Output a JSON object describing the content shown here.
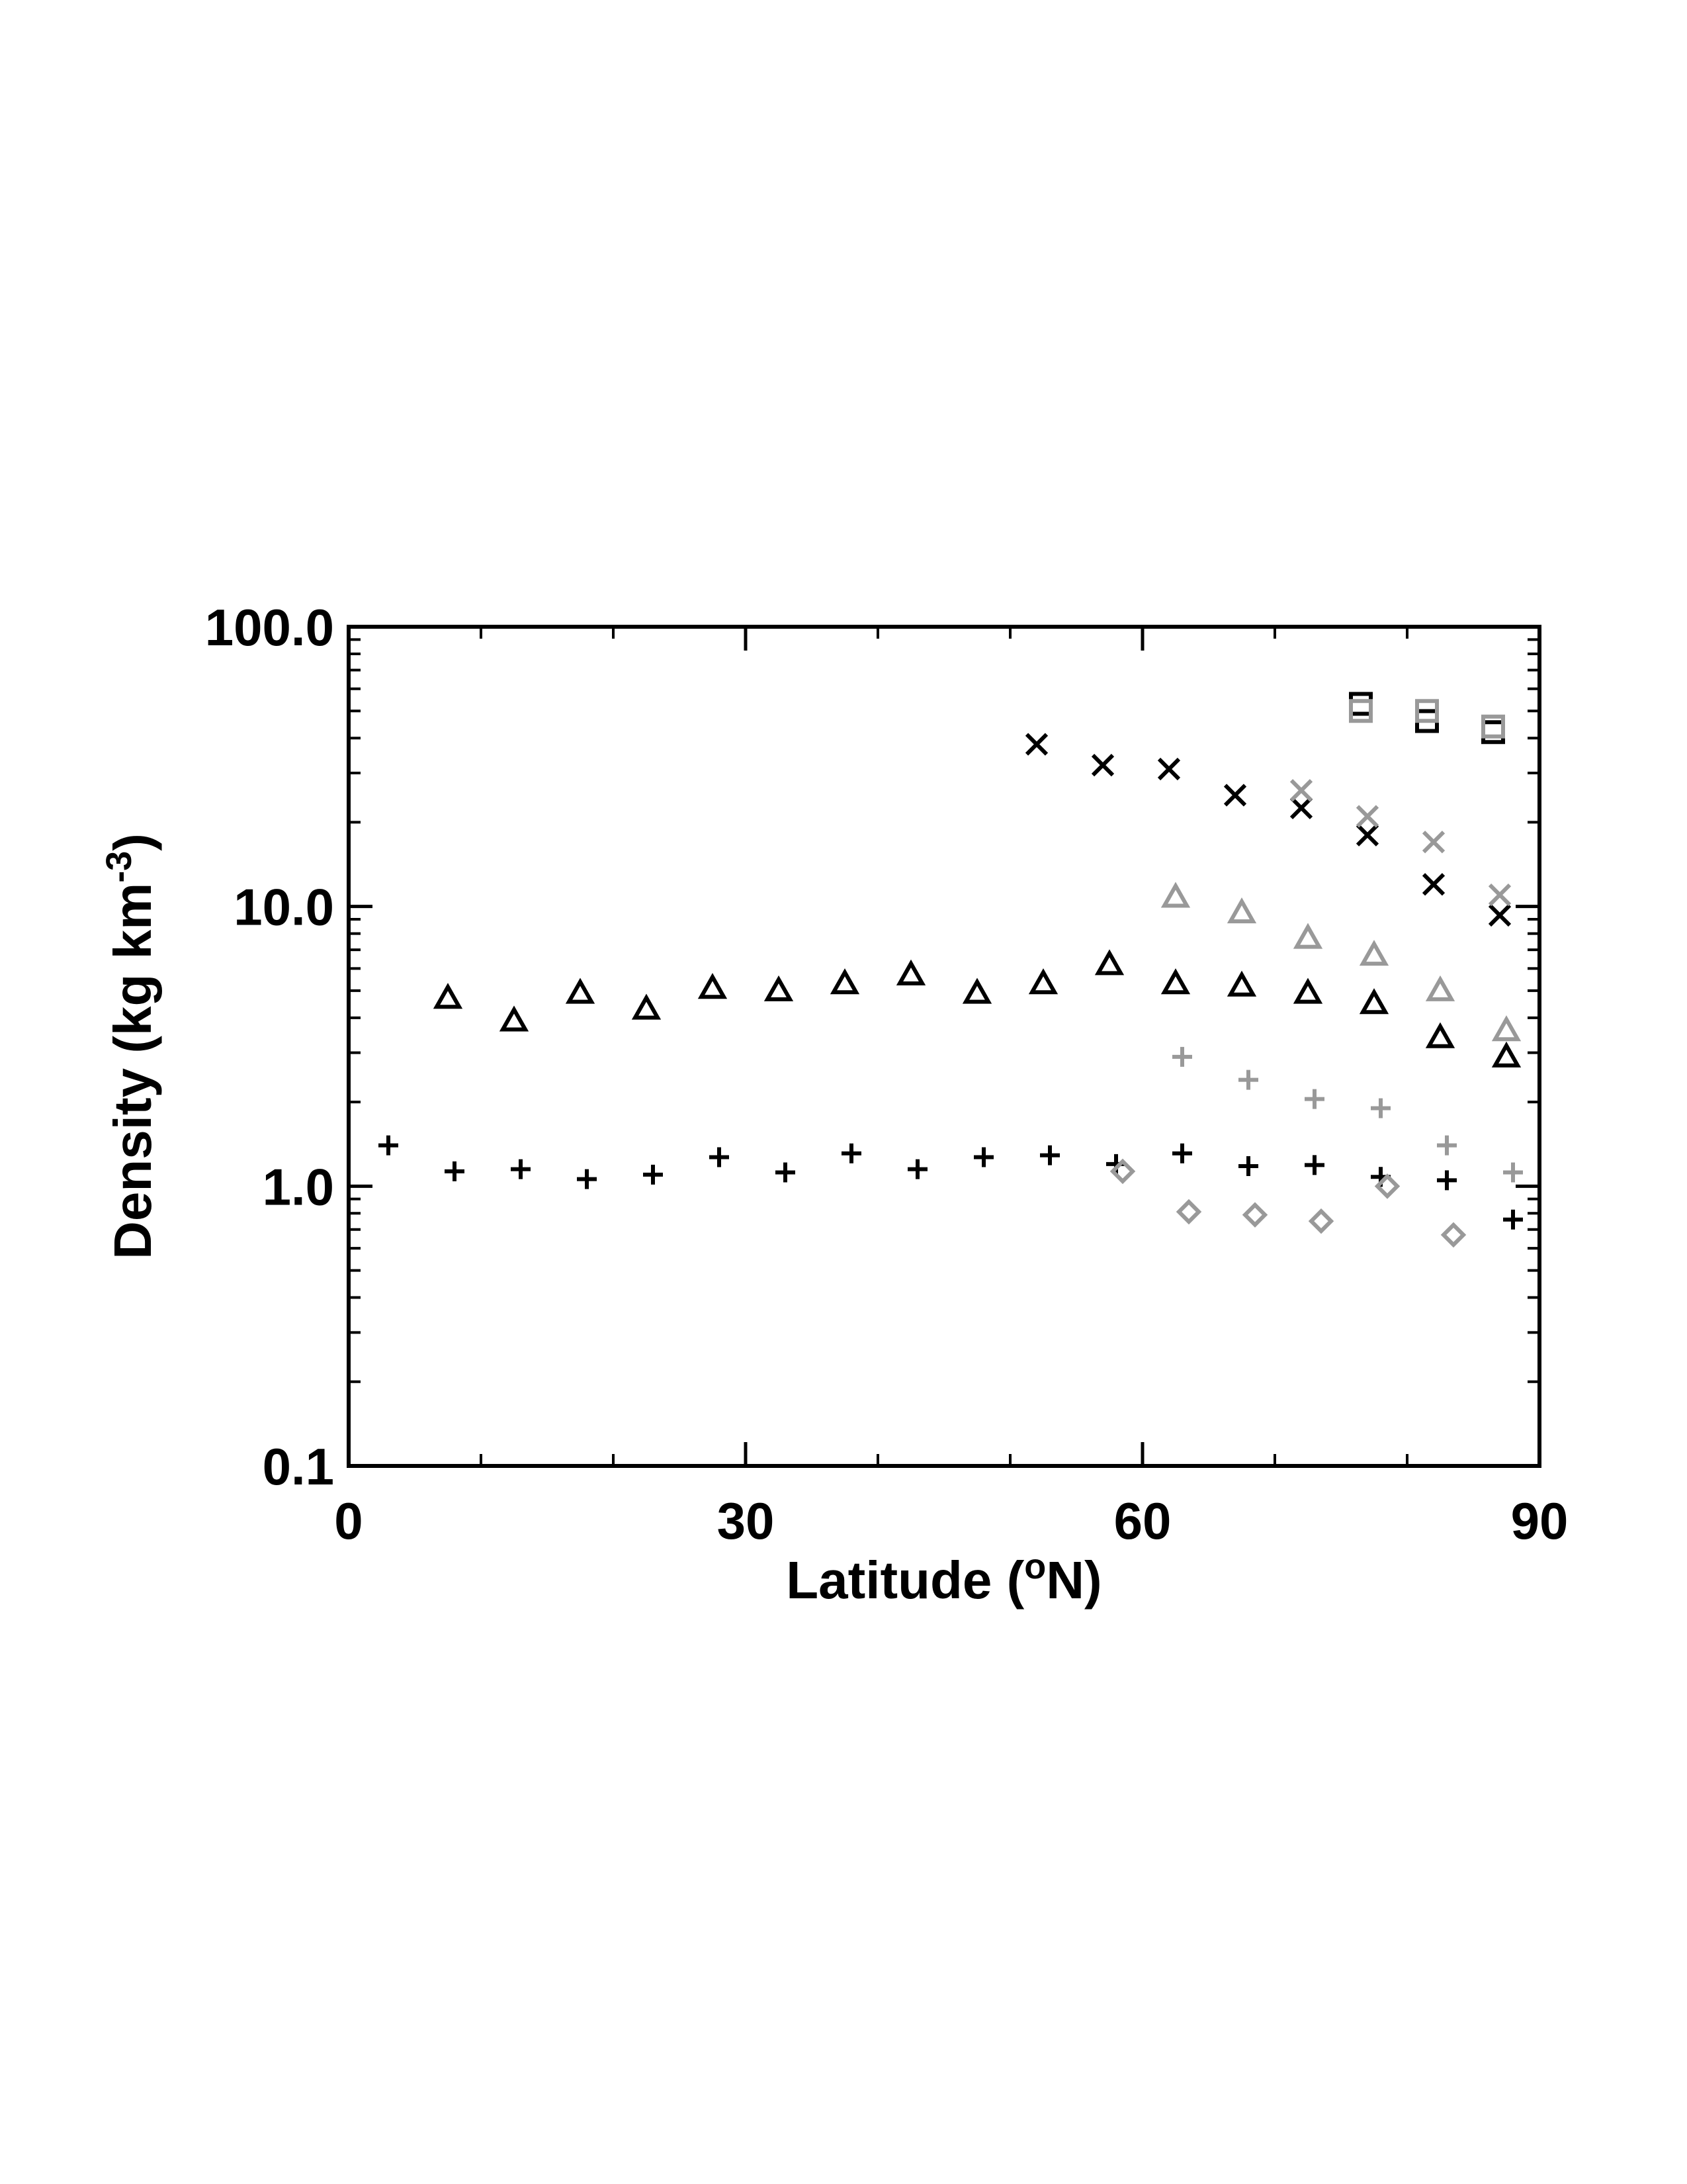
{
  "chart_data": {
    "type": "scatter",
    "title": "",
    "xlabel": "Latitude (",
    "xlabel_sup": "o",
    "xlabel_tail": "N)",
    "ylabel": "Density (kg km",
    "ylabel_sup": "-3",
    "ylabel_tail": ")",
    "xlim": [
      0,
      90
    ],
    "ylim": [
      0.1,
      100
    ],
    "yscale": "log",
    "x_ticks": [
      {
        "value": 0,
        "label": "0"
      },
      {
        "value": 30,
        "label": "30"
      },
      {
        "value": 60,
        "label": "60"
      },
      {
        "value": 90,
        "label": "90"
      }
    ],
    "y_ticks": [
      {
        "value": 0.1,
        "label": "0.1"
      },
      {
        "value": 1,
        "label": "1.0"
      },
      {
        "value": 10,
        "label": "10.0"
      },
      {
        "value": 100,
        "label": "100.0"
      }
    ],
    "grid": false,
    "legend": "none",
    "series": [
      {
        "marker": "plus",
        "color": "#000000",
        "x": [
          3,
          8,
          13,
          18,
          23,
          28,
          33,
          38,
          43,
          48,
          53,
          58,
          63,
          68,
          73,
          78,
          83,
          88
        ],
        "y": [
          1.4,
          1.13,
          1.15,
          1.06,
          1.1,
          1.27,
          1.12,
          1.31,
          1.15,
          1.27,
          1.29,
          1.2,
          1.31,
          1.18,
          1.19,
          1.08,
          1.05,
          0.76
        ]
      },
      {
        "marker": "triangle",
        "color": "#000000",
        "x": [
          7.5,
          12.5,
          17.5,
          22.5,
          27.5,
          32.5,
          37.5,
          42.5,
          47.5,
          52.5,
          57.5,
          62.5,
          67.5,
          72.5,
          77.5,
          82.5,
          87.5
        ],
        "y": [
          4.7,
          3.9,
          4.9,
          4.3,
          5.1,
          5.0,
          5.3,
          5.7,
          4.9,
          5.3,
          6.2,
          5.3,
          5.2,
          4.9,
          4.5,
          3.4,
          2.9
        ]
      },
      {
        "marker": "cross",
        "color": "#000000",
        "x": [
          52,
          57,
          62,
          67,
          72,
          77,
          82,
          87
        ],
        "y": [
          38,
          32,
          31,
          25,
          22.5,
          18,
          12,
          9.3
        ]
      },
      {
        "marker": "square",
        "color": "#000000",
        "x": [
          76.5,
          81.5,
          86.5
        ],
        "y": [
          53,
          46,
          42
        ]
      },
      {
        "marker": "square",
        "color": "#999999",
        "x": [
          76.5,
          81.5,
          86.5
        ],
        "y": [
          50,
          50,
          44
        ]
      },
      {
        "marker": "cross",
        "color": "#999999",
        "x": [
          72,
          77,
          82,
          87
        ],
        "y": [
          26,
          21,
          17,
          11
        ]
      },
      {
        "marker": "triangle",
        "color": "#999999",
        "x": [
          62.5,
          67.5,
          72.5,
          77.5,
          82.5,
          87.5
        ],
        "y": [
          10.8,
          9.5,
          7.7,
          6.7,
          5.0,
          3.6
        ]
      },
      {
        "marker": "plus",
        "color": "#999999",
        "x": [
          63,
          68,
          73,
          78,
          83,
          88
        ],
        "y": [
          2.9,
          2.4,
          2.05,
          1.9,
          1.4,
          1.12
        ]
      },
      {
        "marker": "diamond",
        "color": "#999999",
        "x": [
          58.5,
          63.5,
          68.5,
          73.5,
          78.5,
          83.5
        ],
        "y": [
          1.13,
          0.81,
          0.79,
          0.75,
          1.0,
          0.67
        ]
      }
    ]
  }
}
